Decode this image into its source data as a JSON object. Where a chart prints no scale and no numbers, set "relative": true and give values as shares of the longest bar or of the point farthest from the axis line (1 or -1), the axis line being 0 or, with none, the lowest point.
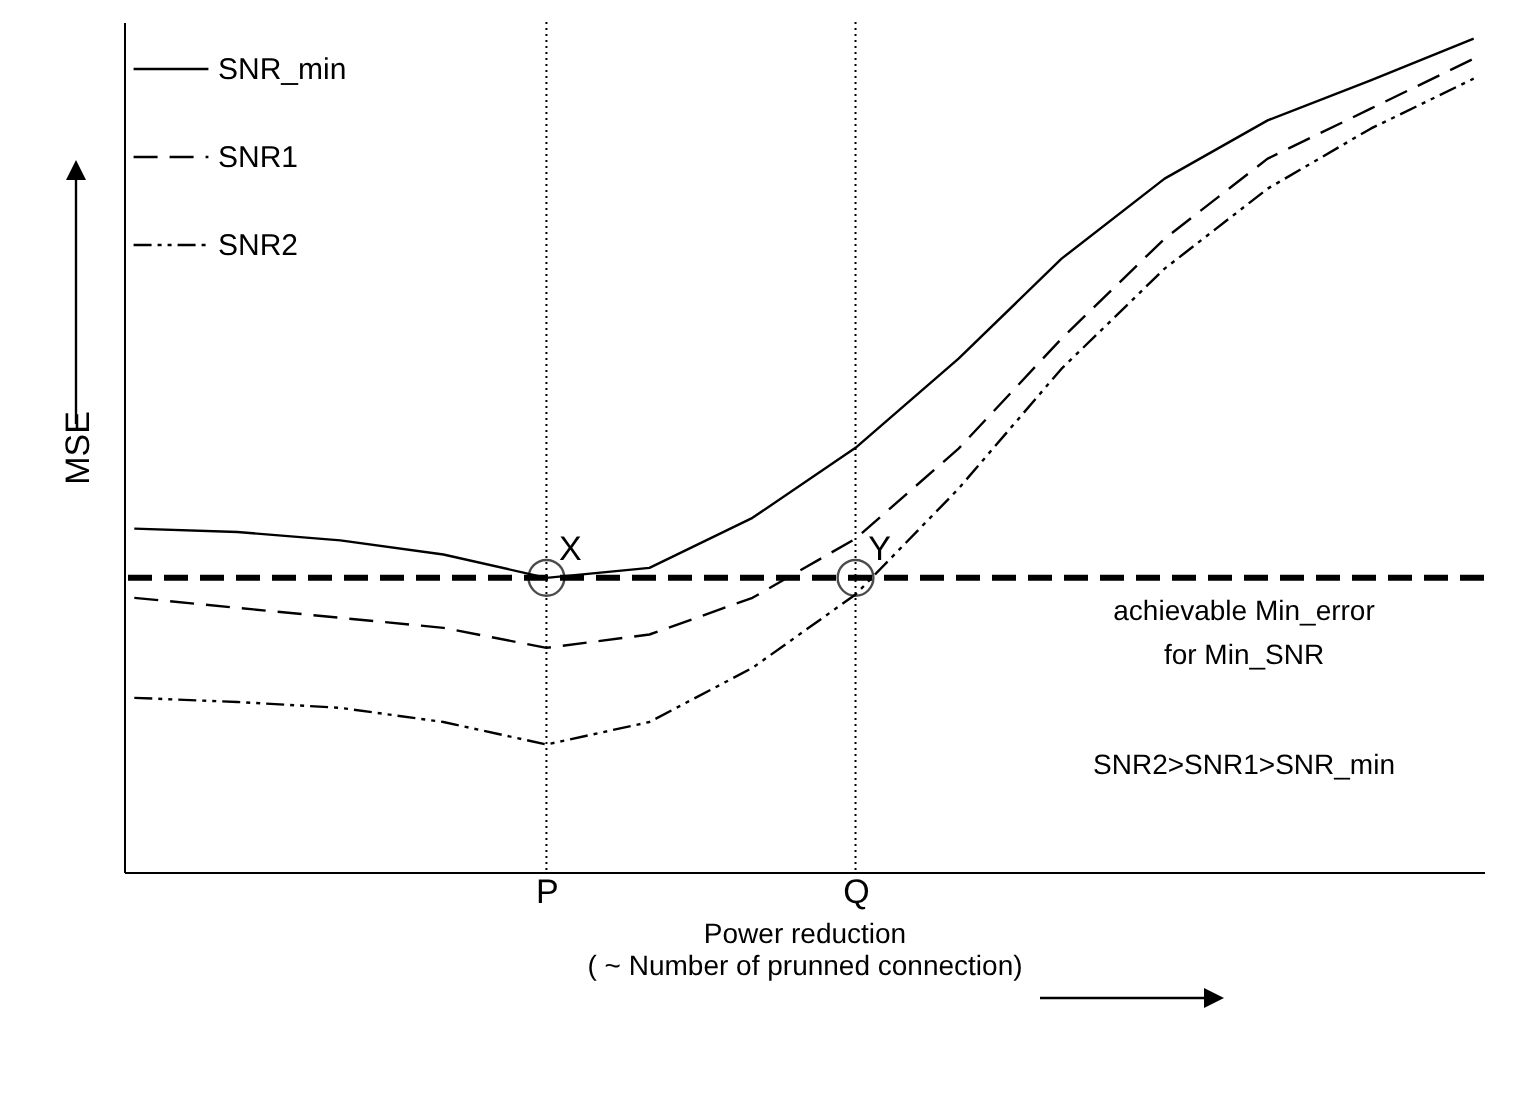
{
  "chart_data": {
    "type": "line",
    "relative": true,
    "xlabel": "Power reduction\n( ~ Number of prunned connection)",
    "ylabel": "MSE",
    "legend": "top left",
    "categories": [
      null,
      null,
      null,
      null,
      "P",
      null,
      null,
      "Q",
      null,
      null,
      null,
      null,
      null,
      null
    ],
    "series": [
      {
        "name": "SNR_min",
        "color": "#000000",
        "line_style": "solid",
        "values": [
          0.412,
          0.408,
          0.398,
          0.381,
          0.353,
          0.365,
          0.425,
          0.509,
          0.616,
          0.736,
          0.832,
          0.902,
          0.95,
          1.0
        ]
      },
      {
        "name": "SNR1",
        "color": "#000000",
        "line_style": "dashed",
        "values": [
          0.329,
          0.317,
          0.305,
          0.293,
          0.269,
          0.285,
          0.329,
          0.4,
          0.508,
          0.64,
          0.76,
          0.856,
          0.916,
          0.976
        ]
      },
      {
        "name": "SNR2",
        "color": "#000000",
        "line_style": "dotted",
        "values": [
          0.209,
          0.204,
          0.197,
          0.18,
          0.153,
          0.18,
          0.245,
          0.333,
          0.46,
          0.604,
          0.724,
          0.82,
          0.892,
          0.952
        ]
      }
    ],
    "ref_lines": [
      {
        "axis": "y",
        "value": 0.353,
        "label": "achievable Min_error\nfor Min_SNR",
        "line_style": "dashed"
      },
      {
        "axis": "x",
        "value": "P",
        "line_style": "dotted"
      },
      {
        "axis": "x",
        "value": "Q",
        "line_style": "dotted"
      }
    ],
    "annotations": [
      {
        "text": "X",
        "x": "P",
        "y": 0.353
      },
      {
        "text": "Y",
        "x": "Q",
        "y": 0.353
      },
      "SNR2>SNR1>SNR_min"
    ]
  }
}
